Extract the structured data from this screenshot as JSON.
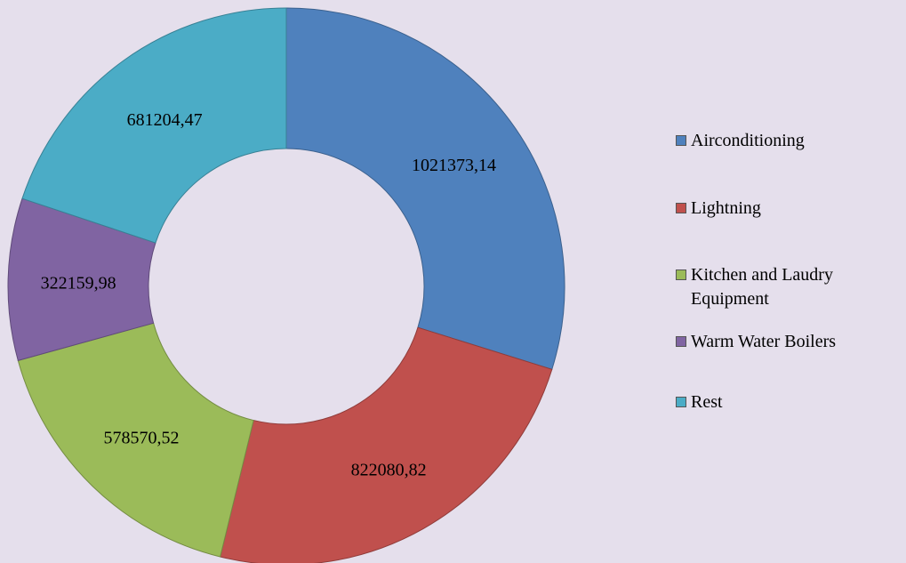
{
  "chart_data": {
    "type": "donut",
    "categories": [
      "Airconditioning",
      "Lightning",
      "Kitchen and Laudry Equipment",
      "Warm Water Boilers",
      "Rest"
    ],
    "values": [
      1021373.14,
      822080.82,
      578570.52,
      322159.98,
      681204.47
    ],
    "value_labels": [
      "1021373,14",
      "822080,82",
      "578570,52",
      "322159,98",
      "681204,47"
    ],
    "colors": [
      "#4f81bd",
      "#c0504d",
      "#9bbb59",
      "#8064a2",
      "#4bacc6"
    ],
    "legend": "right"
  }
}
